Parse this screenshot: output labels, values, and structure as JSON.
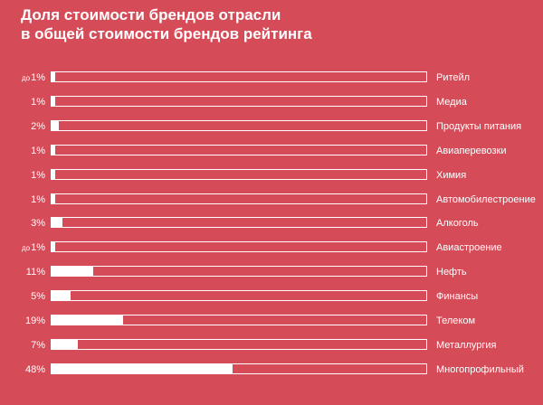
{
  "chart_data": {
    "type": "bar",
    "title_lines": [
      "Доля стоимости брендов отрасли",
      "в общей стоимости брендов рейтинга"
    ],
    "categories": [
      "Ритейл",
      "Медиа",
      "Продукты питания",
      "Авиаперевозки",
      "Химия",
      "Автомобилестроение",
      "Алкоголь",
      "Авиастроение",
      "Нефть",
      "Финансы",
      "Телеком",
      "Металлургия",
      "Многопрофильный"
    ],
    "values": [
      1,
      1,
      2,
      1,
      1,
      1,
      3,
      1,
      11,
      5,
      19,
      7,
      48
    ],
    "value_labels": [
      "1%",
      "1%",
      "2%",
      "1%",
      "1%",
      "1%",
      "3%",
      "1%",
      "11%",
      "5%",
      "19%",
      "7%",
      "48%"
    ],
    "value_prefixes": [
      "до",
      "",
      "",
      "",
      "",
      "",
      "",
      "до",
      "",
      "",
      "",
      "",
      ""
    ],
    "xlim": [
      0,
      100
    ],
    "orientation": "horizontal",
    "grid": false,
    "colors": {
      "background": "#d64b58",
      "bar": "#ffffff",
      "text": "#ffffff"
    }
  }
}
